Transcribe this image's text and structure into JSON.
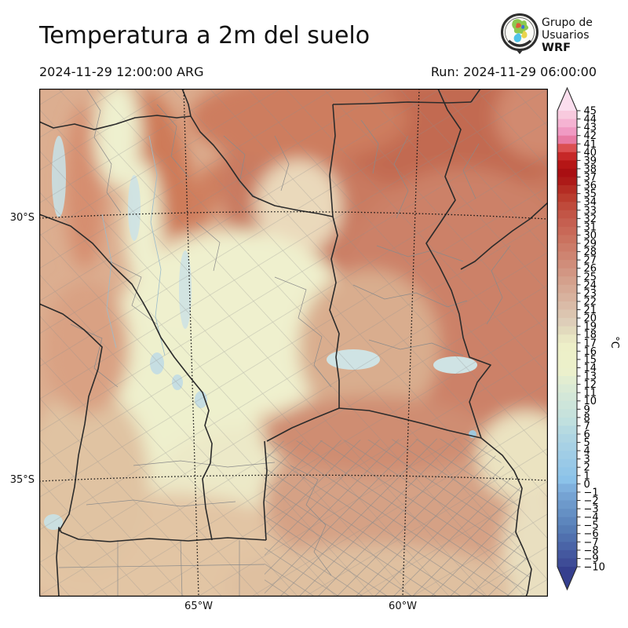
{
  "header": {
    "title": "Temperatura a 2m del suelo",
    "valid_time": "2024-11-29 12:00:00 ARG",
    "run_label": "Run: 2024-11-29 06:00:00",
    "logo": {
      "line1": "Grupo de",
      "line2": "Usuarios",
      "line3": "WRF"
    }
  },
  "map": {
    "y_ticks": [
      {
        "label": "30°S"
      },
      {
        "label": "35°S"
      }
    ],
    "x_ticks": [
      {
        "label": "65°W"
      },
      {
        "label": "60°W"
      }
    ]
  },
  "colorbar": {
    "unit": "°C",
    "ticks": [
      "45",
      "44",
      "43",
      "42",
      "41",
      "40",
      "39",
      "38",
      "37",
      "36",
      "35",
      "34",
      "33",
      "32",
      "31",
      "30",
      "29",
      "28",
      "27",
      "26",
      "25",
      "24",
      "23",
      "22",
      "21",
      "20",
      "19",
      "18",
      "17",
      "16",
      "15",
      "14",
      "13",
      "12",
      "11",
      "10",
      "9",
      "8",
      "7",
      "6",
      "5",
      "4",
      "3",
      "2",
      "1",
      "0",
      "−1",
      "−2",
      "−3",
      "−4",
      "−5",
      "−6",
      "−7",
      "−8",
      "−9",
      "−10"
    ],
    "segment_colors": [
      "#f8cade",
      "#f5b3d2",
      "#f09ac3",
      "#e87ba4",
      "#db4f51",
      "#c62828",
      "#b51616",
      "#a90f12",
      "#ad1a18",
      "#b42c23",
      "#ba3c2e",
      "#bf4a3b",
      "#c25546",
      "#c55f50",
      "#c86857",
      "#ca725f",
      "#cc7b68",
      "#ce8471",
      "#d08d7a",
      "#d29683",
      "#d4a08c",
      "#d6a995",
      "#d8b29e",
      "#dabba7",
      "#dcc5b0",
      "#deceb9",
      "#e2dabd",
      "#e9e7c4",
      "#edefc8",
      "#edf0c9",
      "#ecf0ca",
      "#ebf0cc",
      "#e2edd1",
      "#daead5",
      "#d3e7d8",
      "#cde5da",
      "#c7e2dc",
      "#c0e0df",
      "#b6dae1",
      "#aed5e3",
      "#a7d1e5",
      "#a0cde6",
      "#99c9e7",
      "#92c6e8",
      "#8bc2e9",
      "#7fb0dd",
      "#75a3d3",
      "#6d99cb",
      "#6590c4",
      "#5d86bd",
      "#567cb5",
      "#5070ae",
      "#4a64a7",
      "#44589f",
      "#3e4c97"
    ],
    "over_arrow_color": "#fbdeee",
    "under_arrow_color": "#353f8e",
    "outline_color": "#2b2b2b"
  }
}
